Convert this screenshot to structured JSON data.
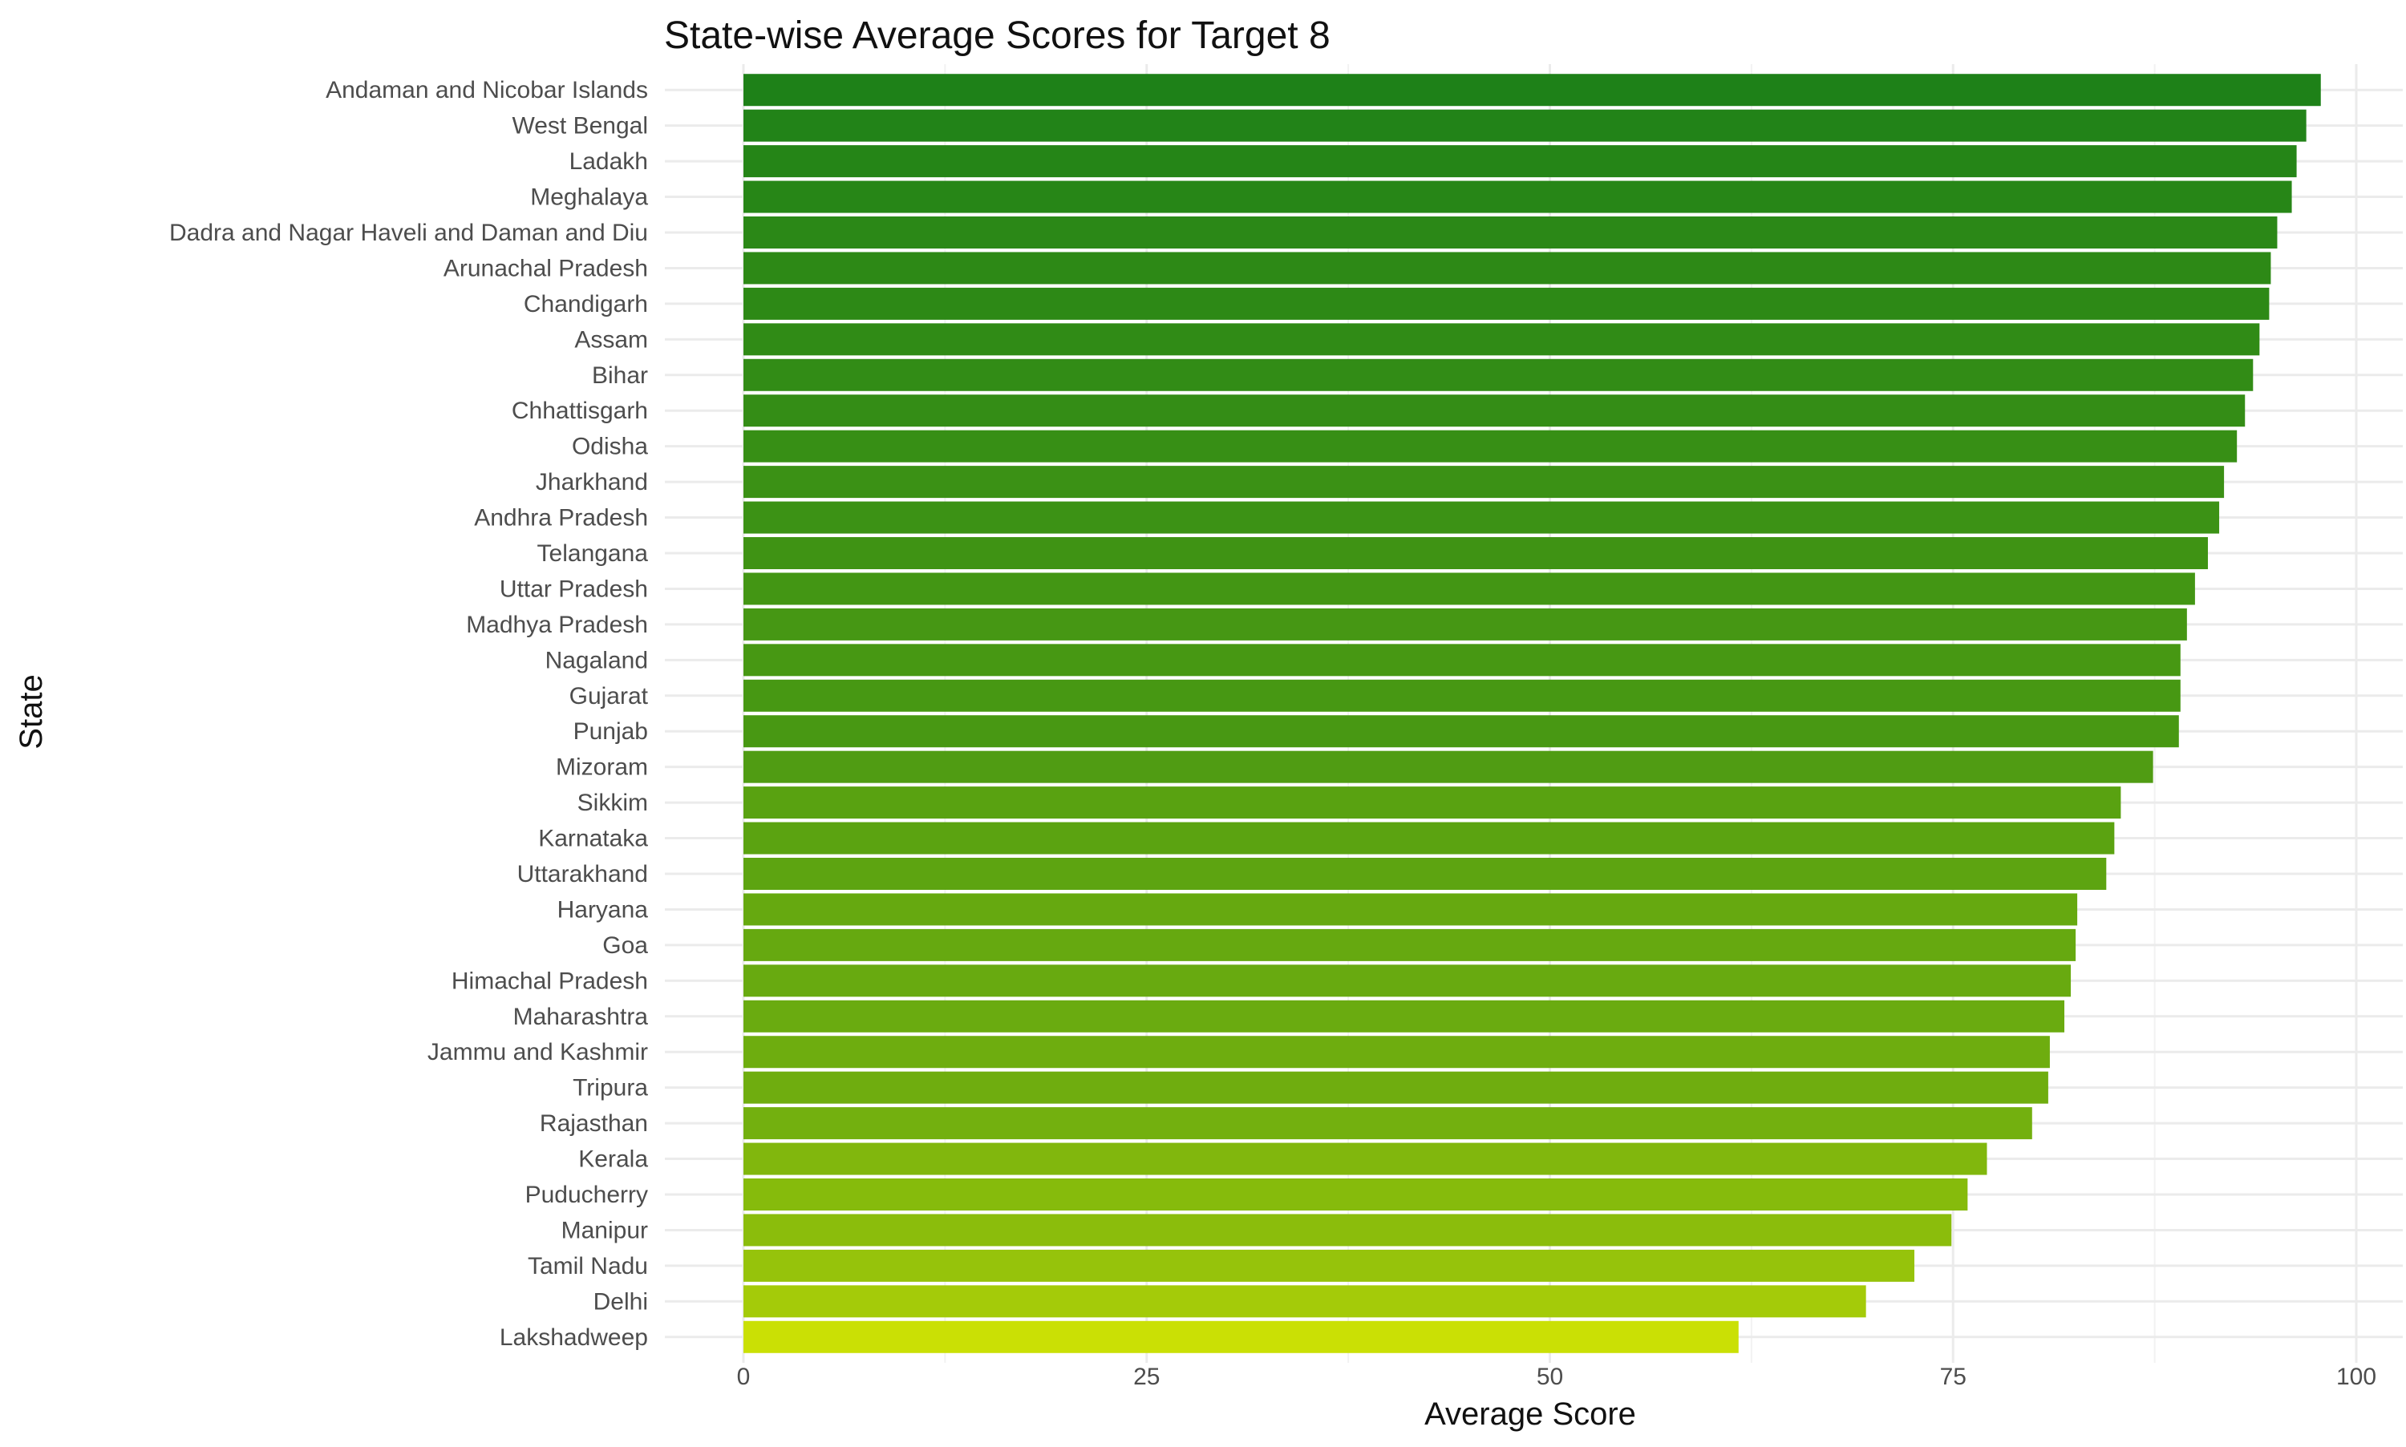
{
  "chart_data": {
    "type": "bar",
    "orientation": "horizontal",
    "title": "State-wise Average Scores for Target 8",
    "xlabel": "Average Score",
    "ylabel": "State",
    "xlim": [
      0,
      100
    ],
    "x_ticks": [
      0,
      25,
      50,
      75,
      100
    ],
    "x_tick_labels": [
      "0",
      "25",
      "50",
      "75",
      "100"
    ],
    "grid": true,
    "legend": "none",
    "color_scale": {
      "high": "#1e8118",
      "low": "#cae005"
    },
    "categories": [
      "Andaman and Nicobar Islands",
      "West Bengal",
      "Ladakh",
      "Meghalaya",
      "Dadra and Nagar Haveli and Daman and Diu",
      "Arunachal Pradesh",
      "Chandigarh",
      "Assam",
      "Bihar",
      "Chhattisgarh",
      "Odisha",
      "Jharkhand",
      "Andhra Pradesh",
      "Telangana",
      "Uttar Pradesh",
      "Madhya Pradesh",
      "Nagaland",
      "Gujarat",
      "Punjab",
      "Mizoram",
      "Sikkim",
      "Karnataka",
      "Uttarakhand",
      "Haryana",
      "Goa",
      "Himachal Pradesh",
      "Maharashtra",
      "Jammu and Kashmir",
      "Tripura",
      "Rajasthan",
      "Kerala",
      "Puducherry",
      "Manipur",
      "Tamil Nadu",
      "Delhi",
      "Lakshadweep"
    ],
    "values": [
      97.8,
      96.9,
      96.3,
      96.0,
      95.1,
      94.7,
      94.6,
      94.0,
      93.6,
      93.1,
      92.6,
      91.8,
      91.5,
      90.8,
      90.0,
      89.5,
      89.1,
      89.1,
      89.0,
      87.4,
      85.4,
      85.0,
      84.5,
      82.7,
      82.6,
      82.3,
      81.9,
      81.0,
      80.9,
      79.9,
      77.1,
      75.9,
      74.9,
      72.6,
      69.6,
      61.7
    ]
  }
}
